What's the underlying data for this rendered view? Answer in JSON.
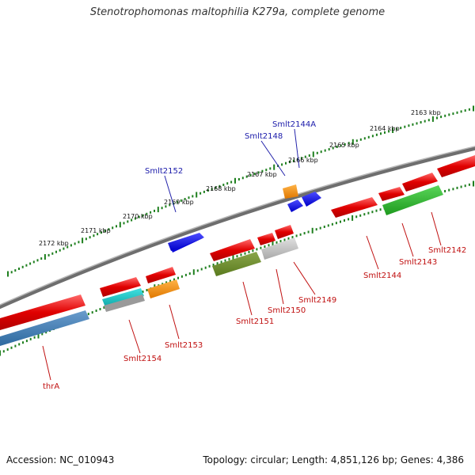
{
  "title": "Stenotrophomonas maltophilia K279a, complete genome",
  "accession": "Accession: NC_010943",
  "summary": "Topology: circular; Length: 4,851,126 bp; Genes: 4,386",
  "colors": {
    "backbone": "#7a7a7a",
    "tick": "#1e7f1e",
    "forward_label": "#1a1aaa",
    "reverse_label": "#c01010"
  },
  "scale_labels": [
    {
      "text": "2172 kbp"
    },
    {
      "text": "2171 kbp"
    },
    {
      "text": "2170 kbp"
    },
    {
      "text": "2169 kbp"
    },
    {
      "text": "2168 kbp"
    },
    {
      "text": "2167 kbp"
    },
    {
      "text": "2166 kbp"
    },
    {
      "text": "2165 kbp"
    },
    {
      "text": "2164 kbp"
    },
    {
      "text": "2163 kbp"
    }
  ],
  "gene_labels": [
    {
      "text": "Smlt2152",
      "strand": "forward"
    },
    {
      "text": "Smlt2148",
      "strand": "forward"
    },
    {
      "text": "Smlt2144A",
      "strand": "forward"
    },
    {
      "text": "thrA",
      "strand": "reverse"
    },
    {
      "text": "Smlt2154",
      "strand": "reverse"
    },
    {
      "text": "Smlt2153",
      "strand": "reverse"
    },
    {
      "text": "Smlt2151",
      "strand": "reverse"
    },
    {
      "text": "Smlt2150",
      "strand": "reverse"
    },
    {
      "text": "Smlt2149",
      "strand": "reverse"
    },
    {
      "text": "Smlt2144",
      "strand": "reverse"
    },
    {
      "text": "Smlt2143",
      "strand": "reverse"
    },
    {
      "text": "Smlt2142",
      "strand": "reverse"
    }
  ]
}
